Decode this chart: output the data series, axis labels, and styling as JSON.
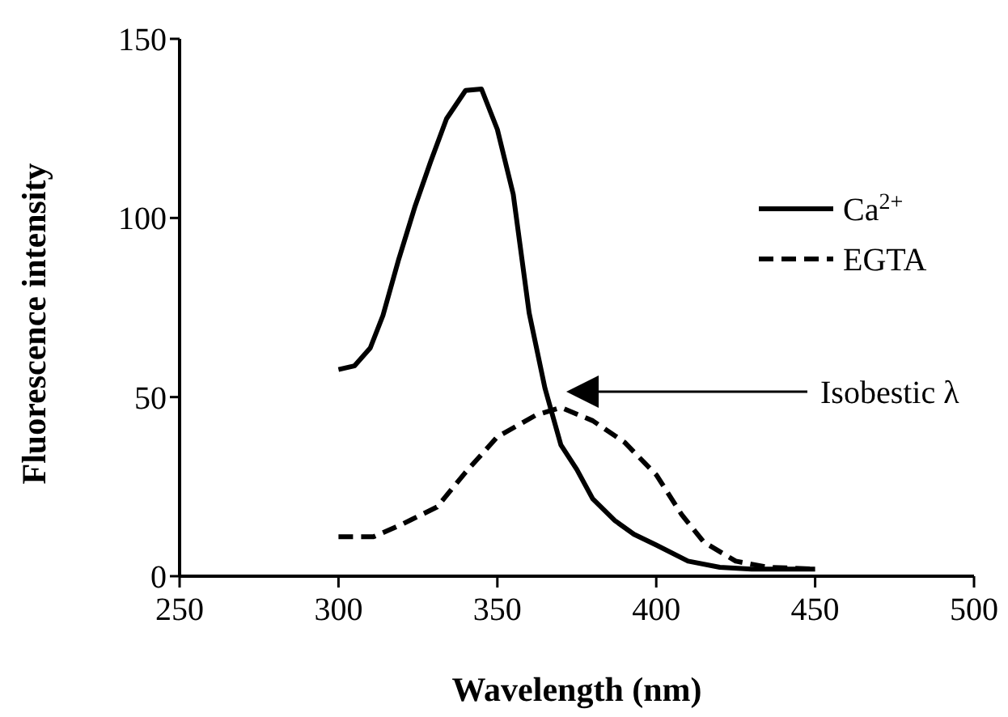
{
  "chart_data": {
    "type": "line",
    "xlabel": "Wavelength (nm)",
    "ylabel": "Fluorescence intensity",
    "xlim": [
      250,
      500
    ],
    "xticks": [
      250,
      300,
      350,
      400,
      450,
      500
    ],
    "ylim": [
      0,
      150
    ],
    "yticks": [
      0,
      50,
      100,
      150
    ],
    "legend": "right",
    "grid": false,
    "series": [
      {
        "name": "Ca$^{2+}$",
        "color": "#000000",
        "line_style": "solid",
        "x": [
          300,
          305,
          310,
          314,
          319,
          324,
          329,
          334,
          340,
          345,
          350,
          355,
          360,
          365,
          370,
          375,
          380,
          387,
          393,
          400,
          410,
          420,
          430,
          440,
          450
        ],
        "values": [
          57.7,
          58.7,
          63.7,
          72.8,
          88.6,
          103,
          115.7,
          127.7,
          135.6,
          136,
          124.7,
          106.6,
          73.5,
          52.4,
          36.6,
          29.8,
          21.6,
          15.5,
          11.7,
          8.7,
          4.2,
          2.5,
          2,
          2,
          2
        ]
      },
      {
        "name": "EGTA",
        "color": "#000000",
        "line_style": "dashed",
        "x": [
          300,
          311,
          320,
          331,
          340,
          350,
          362,
          370,
          380,
          390,
          400,
          408,
          415,
          425,
          435,
          450
        ],
        "values": [
          11,
          11,
          14.5,
          19.3,
          29,
          38.9,
          44.9,
          47.1,
          43.4,
          37.4,
          28.3,
          17.2,
          9.5,
          4.2,
          2.5,
          2
        ]
      }
    ],
    "annotations": [
      "Isobestic λ"
    ]
  }
}
